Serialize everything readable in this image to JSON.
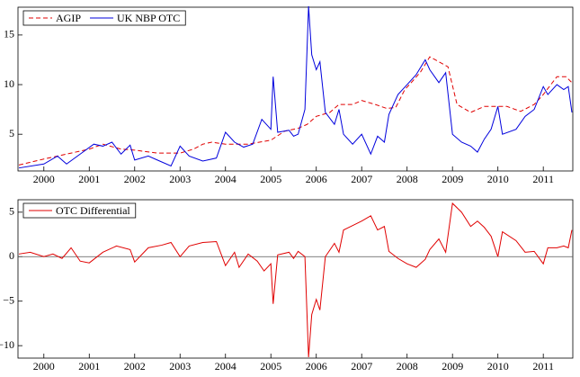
{
  "chart_data": [
    {
      "type": "line",
      "xlim": [
        1999.43,
        2011.65
      ],
      "xticks": [
        2000,
        2001,
        2002,
        2003,
        2004,
        2005,
        2006,
        2007,
        2008,
        2009,
        2010,
        2011
      ],
      "ylim": [
        1.3,
        17.8
      ],
      "yticks": [
        5,
        10,
        15
      ],
      "legend": "top-left",
      "series": [
        {
          "name": "AGIP",
          "color": "#e00000",
          "dash": "dashed",
          "x": [
            1999.45,
            2000,
            2000.5,
            2001,
            2001.3,
            2001.7,
            2002,
            2002.5,
            2003,
            2003.3,
            2003.5,
            2003.7,
            2004,
            2004.5,
            2005,
            2005.3,
            2005.6,
            2005.8,
            2006,
            2006.3,
            2006.5,
            2006.8,
            2007,
            2007.3,
            2007.55,
            2007.75,
            2007.95,
            2008.15,
            2008.3,
            2008.5,
            2008.9,
            2009.1,
            2009.4,
            2009.7,
            2010.2,
            2010.5,
            2010.8,
            2011,
            2011.3,
            2011.5,
            2011.63
          ],
          "values": [
            1.9,
            2.5,
            3.0,
            3.5,
            4.0,
            3.5,
            3.4,
            3.1,
            3.1,
            3.5,
            4.0,
            4.2,
            4.0,
            4.0,
            4.4,
            5.3,
            5.6,
            6.0,
            6.8,
            7.2,
            8.0,
            8.0,
            8.4,
            8.0,
            7.6,
            7.7,
            9.5,
            10.5,
            11.3,
            12.8,
            11.8,
            8.0,
            7.2,
            7.8,
            7.8,
            7.3,
            8.0,
            9.0,
            10.8,
            10.8,
            10.2
          ]
        },
        {
          "name": "UK NBP OTC",
          "color": "#0000dd",
          "dash": "solid",
          "x": [
            1999.45,
            2000,
            2000.3,
            2000.5,
            2000.8,
            2001.1,
            2001.3,
            2001.5,
            2001.7,
            2001.9,
            2002,
            2002.3,
            2002.5,
            2002.8,
            2003,
            2003.2,
            2003.5,
            2003.8,
            2004,
            2004.2,
            2004.4,
            2004.6,
            2004.8,
            2005,
            2005.05,
            2005.15,
            2005.4,
            2005.5,
            2005.6,
            2005.75,
            2005.83,
            2005.9,
            2006,
            2006.08,
            2006.2,
            2006.4,
            2006.5,
            2006.6,
            2006.8,
            2007,
            2007.2,
            2007.35,
            2007.5,
            2007.6,
            2007.8,
            2008,
            2008.2,
            2008.4,
            2008.5,
            2008.7,
            2008.85,
            2009,
            2009.2,
            2009.4,
            2009.55,
            2009.7,
            2009.85,
            2010,
            2010.1,
            2010.4,
            2010.6,
            2010.8,
            2011,
            2011.1,
            2011.3,
            2011.45,
            2011.55,
            2011.63
          ],
          "values": [
            1.6,
            2.0,
            2.8,
            2.0,
            3.0,
            4.0,
            3.8,
            4.2,
            3.0,
            3.9,
            2.4,
            2.8,
            2.4,
            1.8,
            3.8,
            2.8,
            2.3,
            2.6,
            5.2,
            4.2,
            3.7,
            4.0,
            6.5,
            5.5,
            10.8,
            5.2,
            5.4,
            4.8,
            5.0,
            7.5,
            17.9,
            13.0,
            11.5,
            12.3,
            7.2,
            6.0,
            7.5,
            5.0,
            4.0,
            5.0,
            3.0,
            4.8,
            4.2,
            7.0,
            9.0,
            10.0,
            11.0,
            12.5,
            11.5,
            10.2,
            11.2,
            5.0,
            4.2,
            3.8,
            3.2,
            4.5,
            5.5,
            7.8,
            5.0,
            5.5,
            6.8,
            7.5,
            9.8,
            9.0,
            10.0,
            9.5,
            9.8,
            7.2
          ]
        }
      ]
    },
    {
      "type": "line",
      "xlim": [
        1999.43,
        2011.65
      ],
      "xticks": [
        2000,
        2001,
        2002,
        2003,
        2004,
        2005,
        2006,
        2007,
        2008,
        2009,
        2010,
        2011
      ],
      "ylim": [
        -11.4,
        6.4
      ],
      "yticks": [
        {
          "value": -10,
          "label": "−10"
        },
        {
          "value": -5,
          "label": "−5"
        },
        0,
        5
      ],
      "zero_line": true,
      "legend": "top-left",
      "series": [
        {
          "name": "OTC Differential",
          "color": "#e00000",
          "dash": "solid",
          "x": [
            1999.45,
            1999.7,
            2000,
            2000.2,
            2000.4,
            2000.6,
            2000.8,
            2001,
            2001.3,
            2001.6,
            2001.9,
            2002,
            2002.3,
            2002.6,
            2002.8,
            2003,
            2003.2,
            2003.5,
            2003.8,
            2004,
            2004.2,
            2004.3,
            2004.5,
            2004.7,
            2004.85,
            2005,
            2005.05,
            2005.15,
            2005.4,
            2005.5,
            2005.6,
            2005.75,
            2005.83,
            2005.9,
            2006,
            2006.08,
            2006.2,
            2006.4,
            2006.5,
            2006.6,
            2006.8,
            2007,
            2007.2,
            2007.35,
            2007.5,
            2007.6,
            2007.8,
            2008,
            2008.2,
            2008.4,
            2008.5,
            2008.7,
            2008.85,
            2009,
            2009.2,
            2009.4,
            2009.55,
            2009.7,
            2009.85,
            2010,
            2010.1,
            2010.4,
            2010.6,
            2010.8,
            2011,
            2011.1,
            2011.3,
            2011.45,
            2011.55,
            2011.63
          ],
          "values": [
            0.3,
            0.5,
            0.0,
            0.3,
            -0.2,
            1.0,
            -0.5,
            -0.7,
            0.5,
            1.2,
            0.8,
            -0.6,
            1.0,
            1.3,
            1.6,
            0.0,
            1.2,
            1.6,
            1.7,
            -1.0,
            0.5,
            -1.2,
            0.3,
            -0.5,
            -1.6,
            -0.8,
            -5.3,
            0.2,
            0.5,
            -0.2,
            0.6,
            0.0,
            -11.3,
            -6.5,
            -4.8,
            -6.0,
            0.0,
            1.5,
            0.5,
            3.0,
            3.5,
            4.0,
            4.6,
            3.0,
            3.4,
            0.6,
            -0.2,
            -0.8,
            -1.2,
            -0.3,
            0.8,
            2.0,
            0.5,
            6.0,
            5.0,
            3.4,
            4.0,
            3.3,
            2.3,
            0.0,
            2.8,
            1.8,
            0.5,
            0.6,
            -0.8,
            1.0,
            1.0,
            1.2,
            1.0,
            3.0
          ]
        }
      ]
    }
  ]
}
